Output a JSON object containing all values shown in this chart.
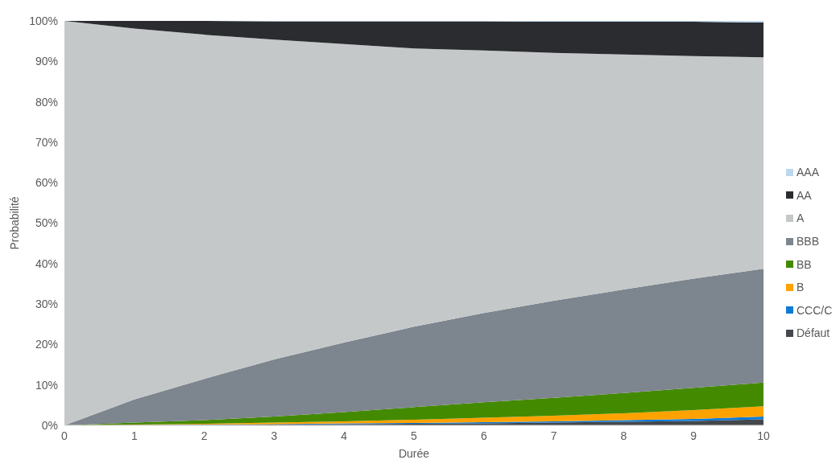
{
  "chart_data": {
    "type": "area",
    "stacked": true,
    "xlabel": "Durée",
    "ylabel": "Probabilité",
    "x": [
      0,
      1,
      2,
      3,
      4,
      5,
      6,
      7,
      8,
      9,
      10
    ],
    "xlim": [
      0,
      10
    ],
    "xticks": [
      0,
      1,
      2,
      3,
      4,
      5,
      6,
      7,
      8,
      9,
      10
    ],
    "ylim": [
      0,
      100
    ],
    "yticks": [
      {
        "value": 0,
        "label": "0%"
      },
      {
        "value": 10,
        "label": "10%"
      },
      {
        "value": 20,
        "label": "20%"
      },
      {
        "value": 30,
        "label": "30%"
      },
      {
        "value": 40,
        "label": "40%"
      },
      {
        "value": 50,
        "label": "50%"
      },
      {
        "value": 60,
        "label": "60%"
      },
      {
        "value": 70,
        "label": "70%"
      },
      {
        "value": 80,
        "label": "80%"
      },
      {
        "value": 90,
        "label": "90%"
      },
      {
        "value": 100,
        "label": "100%"
      }
    ],
    "legend": "right",
    "grid": false,
    "series": [
      {
        "name": "Défaut",
        "color": "#44484d",
        "values": [
          0,
          0.1,
          0.1,
          0.2,
          0.3,
          0.4,
          0.5,
          0.7,
          0.9,
          1.1,
          1.5
        ]
      },
      {
        "name": "CCC/C",
        "color": "#0f7bd6",
        "values": [
          0,
          0,
          0.1,
          0.1,
          0.2,
          0.2,
          0.3,
          0.3,
          0.4,
          0.5,
          0.7
        ]
      },
      {
        "name": "B",
        "color": "#ffa200",
        "values": [
          0,
          0.1,
          0.2,
          0.4,
          0.5,
          0.8,
          1.1,
          1.4,
          1.7,
          2.2,
          2.5
        ]
      },
      {
        "name": "BB",
        "color": "#448a00",
        "values": [
          0,
          0.5,
          0.9,
          1.5,
          2.3,
          3.1,
          3.8,
          4.4,
          5.0,
          5.5,
          5.9
        ]
      },
      {
        "name": "BBB",
        "color": "#7d858e",
        "values": [
          0,
          5.7,
          10.2,
          14.1,
          17.2,
          19.9,
          22.1,
          24.0,
          25.6,
          27.0,
          28.1
        ]
      },
      {
        "name": "A",
        "color": "#c5c8c9",
        "values": [
          100,
          91.7,
          85.1,
          79.1,
          73.8,
          68.8,
          64.9,
          61.3,
          58.1,
          55.0,
          52.3
        ]
      },
      {
        "name": "AA",
        "color": "#2a2c30",
        "values": [
          0,
          1.9,
          3.4,
          4.5,
          5.6,
          6.7,
          7.2,
          7.7,
          8.1,
          8.5,
          8.6
        ]
      },
      {
        "name": "AAA",
        "color": "#bdd7ee",
        "values": [
          0,
          0,
          0,
          0.1,
          0.1,
          0.1,
          0.1,
          0.2,
          0.2,
          0.2,
          0.4
        ]
      }
    ]
  }
}
